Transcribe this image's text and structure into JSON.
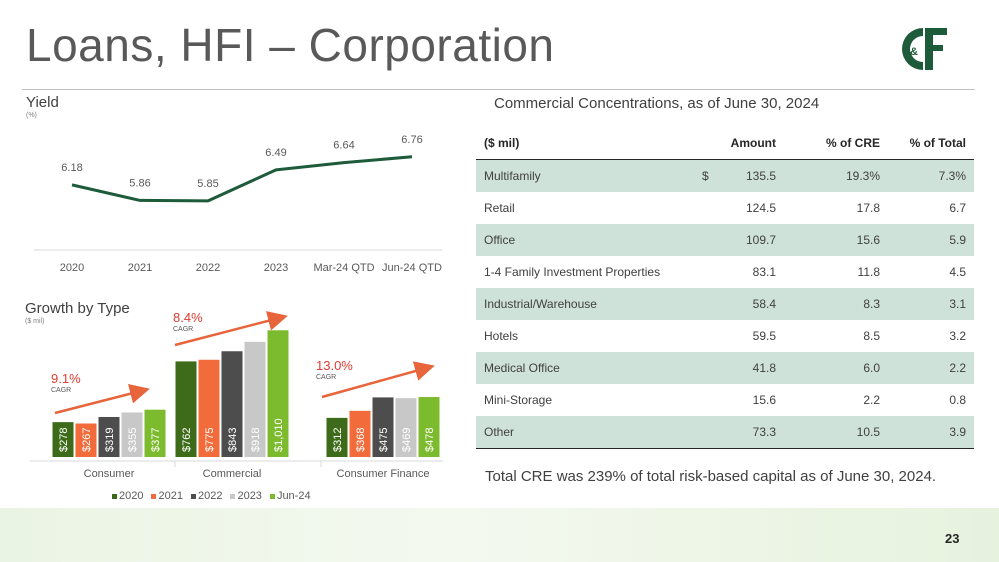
{
  "slide": {
    "title": "Loans, HFI – Corporation",
    "page_number": "23",
    "logo_text": "C&F"
  },
  "yield_section": {
    "title": "Yield",
    "unit": "(%)"
  },
  "growth_section": {
    "title": "Growth by Type",
    "unit": "($ mil)",
    "cagr_label": "CAGR",
    "cagrs": [
      {
        "group": "Consumer",
        "value": "9.1%"
      },
      {
        "group": "Commercial",
        "value": "8.4%"
      },
      {
        "group": "Consumer Finance",
        "value": "13.0%"
      }
    ]
  },
  "chart_data": [
    {
      "type": "line",
      "title": "Yield",
      "ylabel": "(%)",
      "categories": [
        "2020",
        "2021",
        "2022",
        "2023",
        "Mar-24 QTD",
        "Jun-24 QTD"
      ],
      "values": [
        6.18,
        5.86,
        5.85,
        6.49,
        6.64,
        6.76
      ],
      "data_labels": [
        "6.18",
        "5.86",
        "5.85",
        "6.49",
        "6.64",
        "6.76"
      ],
      "line_color": "#1e5b3a"
    },
    {
      "type": "bar",
      "title": "Growth by Type",
      "ylabel": "($ mil)",
      "categories": [
        "Consumer",
        "Commercial",
        "Consumer Finance"
      ],
      "series": [
        {
          "name": "2020",
          "color": "#3d6b1a",
          "values": [
            278,
            762,
            312
          ],
          "labels": [
            "$278",
            "$762",
            "$312"
          ]
        },
        {
          "name": "2021",
          "color": "#f26b3a",
          "values": [
            267,
            775,
            368
          ],
          "labels": [
            "$267",
            "$775",
            "$368"
          ]
        },
        {
          "name": "2022",
          "color": "#4d4d4d",
          "values": [
            319,
            843,
            475
          ],
          "labels": [
            "$319",
            "$843",
            "$475"
          ]
        },
        {
          "name": "2023",
          "color": "#c8c8c8",
          "values": [
            355,
            918,
            469
          ],
          "labels": [
            "$355",
            "$918",
            "$469"
          ]
        },
        {
          "name": "Jun-24",
          "color": "#7dbb2e",
          "values": [
            377,
            1010,
            478
          ],
          "labels": [
            "$377",
            "$1,010",
            "$478"
          ]
        }
      ],
      "ylim": [
        0,
        1100
      ],
      "legend": "bottom"
    }
  ],
  "concentrations": {
    "title": "Commercial Concentrations, as of June 30, 2024",
    "headers": [
      "($ mil)",
      "Amount",
      "% of CRE",
      "% of Total"
    ],
    "currency_symbol": "$",
    "rows": [
      {
        "name": "Multifamily",
        "amount": "135.5",
        "pct_cre": "19.3%",
        "pct_total": "7.3%"
      },
      {
        "name": "Retail",
        "amount": "124.5",
        "pct_cre": "17.8",
        "pct_total": "6.7"
      },
      {
        "name": "Office",
        "amount": "109.7",
        "pct_cre": "15.6",
        "pct_total": "5.9"
      },
      {
        "name": "1-4 Family Investment Properties",
        "amount": "83.1",
        "pct_cre": "11.8",
        "pct_total": "4.5"
      },
      {
        "name": "Industrial/Warehouse",
        "amount": "58.4",
        "pct_cre": "8.3",
        "pct_total": "3.1"
      },
      {
        "name": "Hotels",
        "amount": "59.5",
        "pct_cre": "8.5",
        "pct_total": "3.2"
      },
      {
        "name": "Medical Office",
        "amount": "41.8",
        "pct_cre": "6.0",
        "pct_total": "2.2"
      },
      {
        "name": "Mini-Storage",
        "amount": "15.6",
        "pct_cre": "2.2",
        "pct_total": "0.8"
      },
      {
        "name": "Other",
        "amount": "73.3",
        "pct_cre": "10.5",
        "pct_total": "3.9"
      }
    ],
    "footnote": "Total CRE was 239% of total risk-based capital as of June 30, 2024."
  },
  "colors": {
    "brand_green": "#1e5b3a",
    "cagr_red": "#e03c31",
    "table_shade": "#cfe2d9"
  }
}
